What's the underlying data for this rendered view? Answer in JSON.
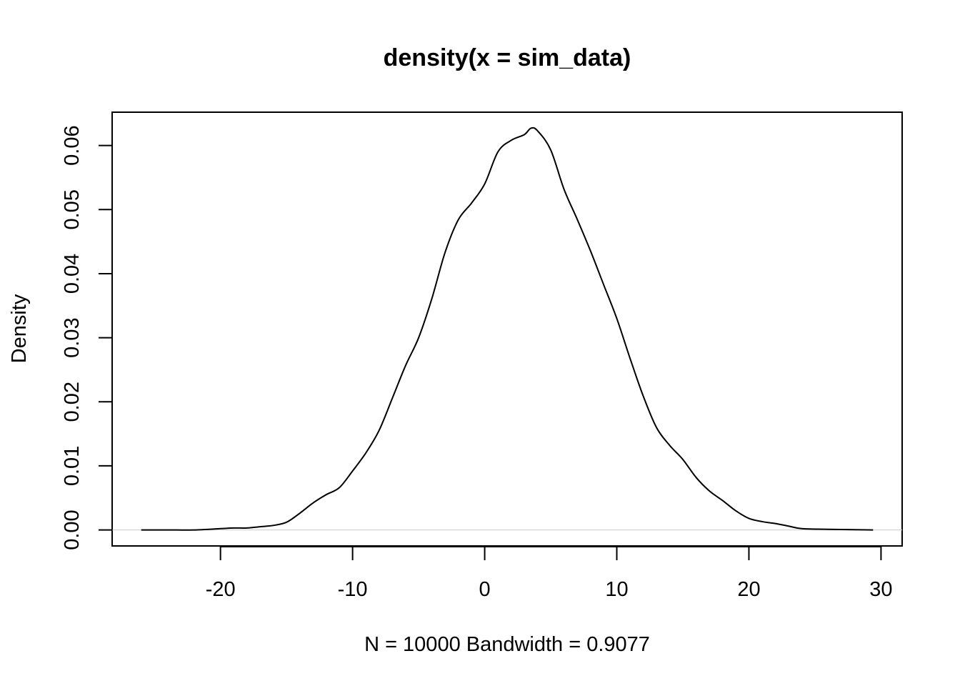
{
  "chart_data": {
    "type": "line",
    "title": "density(x = sim_data)",
    "xlabel": "N = 10000   Bandwidth = 0.9077",
    "ylabel": "Density",
    "xlim": [
      -28.2,
      31.6
    ],
    "ylim": [
      -0.0025,
      0.0652
    ],
    "x_ticks": [
      -20,
      -10,
      0,
      10,
      20,
      30
    ],
    "x_tick_labels": [
      "-20",
      "-10",
      "0",
      "10",
      "20",
      "30"
    ],
    "y_ticks": [
      0.0,
      0.01,
      0.02,
      0.03,
      0.04,
      0.05,
      0.06
    ],
    "y_tick_labels": [
      "0.00",
      "0.01",
      "0.02",
      "0.03",
      "0.04",
      "0.05",
      "0.06"
    ],
    "grid": false,
    "legend": "none",
    "baseline": 0,
    "colors": {
      "line": "#000000",
      "baseline": "#cccccc",
      "frame": "#000000"
    },
    "series": [
      {
        "x": [
          -26,
          -24,
          -22,
          -20,
          -19,
          -18,
          -17,
          -16,
          -15,
          -14,
          -13,
          -12,
          -11,
          -10,
          -9,
          -8,
          -7,
          -6,
          -5,
          -4,
          -3,
          -2,
          -1,
          0,
          1,
          2,
          3,
          3.5,
          4,
          5,
          6,
          7,
          8,
          9,
          10,
          11,
          12,
          13,
          14,
          15,
          16,
          17,
          18,
          19,
          20,
          21,
          22,
          23,
          24,
          26,
          29.4
        ],
        "y": [
          0.0,
          0.0,
          0.0,
          0.0002,
          0.0003,
          0.0003,
          0.0005,
          0.0007,
          0.0012,
          0.0026,
          0.0042,
          0.0055,
          0.0066,
          0.0092,
          0.012,
          0.0155,
          0.0205,
          0.0256,
          0.03,
          0.0361,
          0.0433,
          0.0484,
          0.051,
          0.054,
          0.059,
          0.0608,
          0.0617,
          0.0627,
          0.0623,
          0.0593,
          0.0532,
          0.0485,
          0.0436,
          0.0383,
          0.033,
          0.0268,
          0.0209,
          0.016,
          0.0132,
          0.011,
          0.0082,
          0.0061,
          0.0046,
          0.003,
          0.0018,
          0.0013,
          0.001,
          0.0006,
          0.0002,
          0.0001,
          0.0
        ]
      }
    ]
  }
}
